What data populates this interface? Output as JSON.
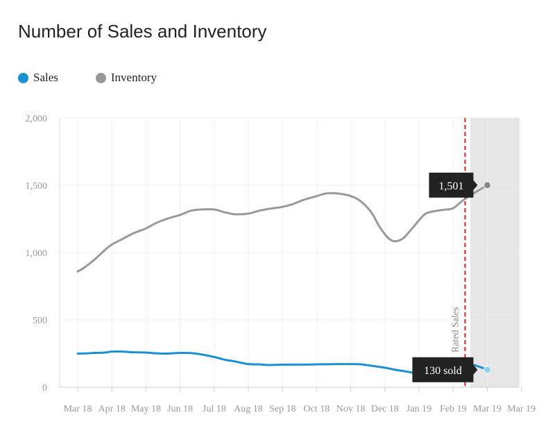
{
  "chart_data": {
    "type": "line",
    "title": "Number of Sales and Inventory",
    "categories": [
      "Mar 18",
      "Apr 18",
      "May 18",
      "Jun 18",
      "Jul 18",
      "Aug 18",
      "Sep 18",
      "Oct 18",
      "Nov 18",
      "Dec 18",
      "Jan 19",
      "Feb 19",
      "Mar 19",
      "Mar 19"
    ],
    "ylim": [
      0,
      2000
    ],
    "yticks": [
      "2,000",
      "1,500",
      "1,000",
      "500",
      "0"
    ],
    "grid": true,
    "legend_placement": "top-left",
    "series": [
      {
        "name": "Sales",
        "color": "#1a8fd1",
        "x": [
          0,
          0.3,
          0.5,
          0.8,
          1,
          1.3,
          1.6,
          2,
          2.3,
          2.6,
          3,
          3.3,
          3.6,
          4,
          4.3,
          4.6,
          5,
          5.3,
          5.6,
          6,
          6.3,
          6.6,
          7,
          7.3,
          7.6,
          8,
          8.3,
          8.6,
          9,
          9.3,
          9.6,
          10,
          10.2,
          10.5,
          10.8,
          11,
          11.3,
          11.6,
          12
        ],
        "values": [
          250,
          252,
          255,
          258,
          265,
          265,
          260,
          258,
          252,
          250,
          255,
          254,
          245,
          225,
          205,
          192,
          172,
          170,
          165,
          168,
          168,
          168,
          170,
          171,
          172,
          172,
          170,
          160,
          145,
          130,
          118,
          100,
          95,
          100,
          120,
          140,
          160,
          165,
          130
        ]
      },
      {
        "name": "Inventory",
        "color": "#999999",
        "x": [
          0,
          0.2,
          0.5,
          0.8,
          1,
          1.3,
          1.6,
          2,
          2.3,
          2.6,
          3,
          3.3,
          3.6,
          4,
          4.3,
          4.6,
          5,
          5.3,
          5.6,
          6,
          6.3,
          6.6,
          7,
          7.3,
          7.6,
          8,
          8.3,
          8.6,
          8.9,
          9.2,
          9.5,
          9.8,
          10,
          10.2,
          10.5,
          10.8,
          11,
          11.3,
          11.6,
          12
        ],
        "values": [
          860,
          890,
          950,
          1020,
          1060,
          1100,
          1140,
          1180,
          1220,
          1250,
          1280,
          1310,
          1320,
          1320,
          1300,
          1285,
          1290,
          1310,
          1325,
          1340,
          1360,
          1390,
          1420,
          1440,
          1440,
          1420,
          1380,
          1300,
          1170,
          1090,
          1100,
          1180,
          1240,
          1290,
          1310,
          1320,
          1330,
          1390,
          1440,
          1501
        ]
      }
    ],
    "forecast_line_at": 11.35,
    "forecast_label": "Rated Sales",
    "shaded_region": [
      11.5,
      12.5
    ],
    "tooltips": [
      {
        "series": "Inventory",
        "text": "1,501",
        "x": 12,
        "y": 1501
      },
      {
        "series": "Sales",
        "text": "130 sold",
        "x": 12,
        "y": 130
      }
    ]
  },
  "legend": [
    {
      "label": "Sales",
      "color": "#1a8fd1"
    },
    {
      "label": "Inventory",
      "color": "#999999"
    }
  ]
}
